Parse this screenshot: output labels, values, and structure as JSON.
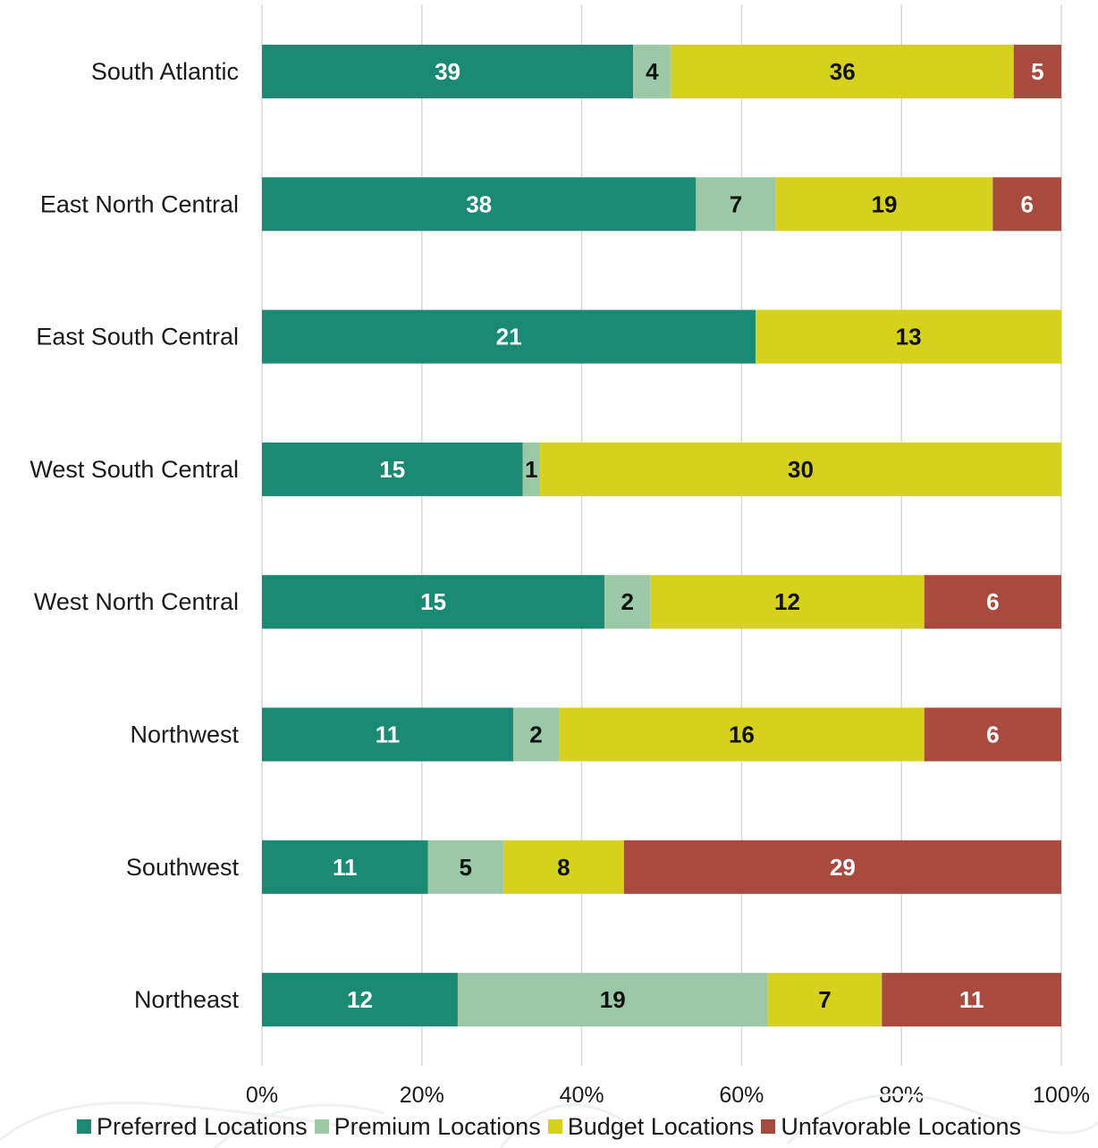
{
  "chart_data": {
    "type": "bar",
    "orientation": "horizontal",
    "stacked": "percent",
    "categories": [
      "South Atlantic",
      "East North Central",
      "East South Central",
      "West South Central",
      "West North Central",
      "Northwest",
      "Southwest",
      "Northeast"
    ],
    "series": [
      {
        "name": "Preferred Locations",
        "color": "#1b8a75",
        "label_color": "#ffffff",
        "values": [
          39,
          38,
          21,
          15,
          15,
          11,
          11,
          12
        ]
      },
      {
        "name": "Premium Locations",
        "color": "#9bc9a8",
        "label_color": "#111111",
        "values": [
          4,
          7,
          0,
          1,
          2,
          2,
          5,
          19
        ]
      },
      {
        "name": "Budget Locations",
        "color": "#d6d11d",
        "label_color": "#111111",
        "values": [
          36,
          19,
          13,
          30,
          12,
          16,
          8,
          7
        ]
      },
      {
        "name": "Unfavorable Locations",
        "color": "#a84b3e",
        "label_color": "#ffffff",
        "values": [
          5,
          6,
          0,
          0,
          6,
          6,
          29,
          11
        ]
      }
    ],
    "x_ticks": [
      "0%",
      "20%",
      "40%",
      "60%",
      "80%",
      "100%"
    ],
    "xlim": [
      0,
      100
    ],
    "grid": "vertical",
    "legend_position": "bottom"
  }
}
